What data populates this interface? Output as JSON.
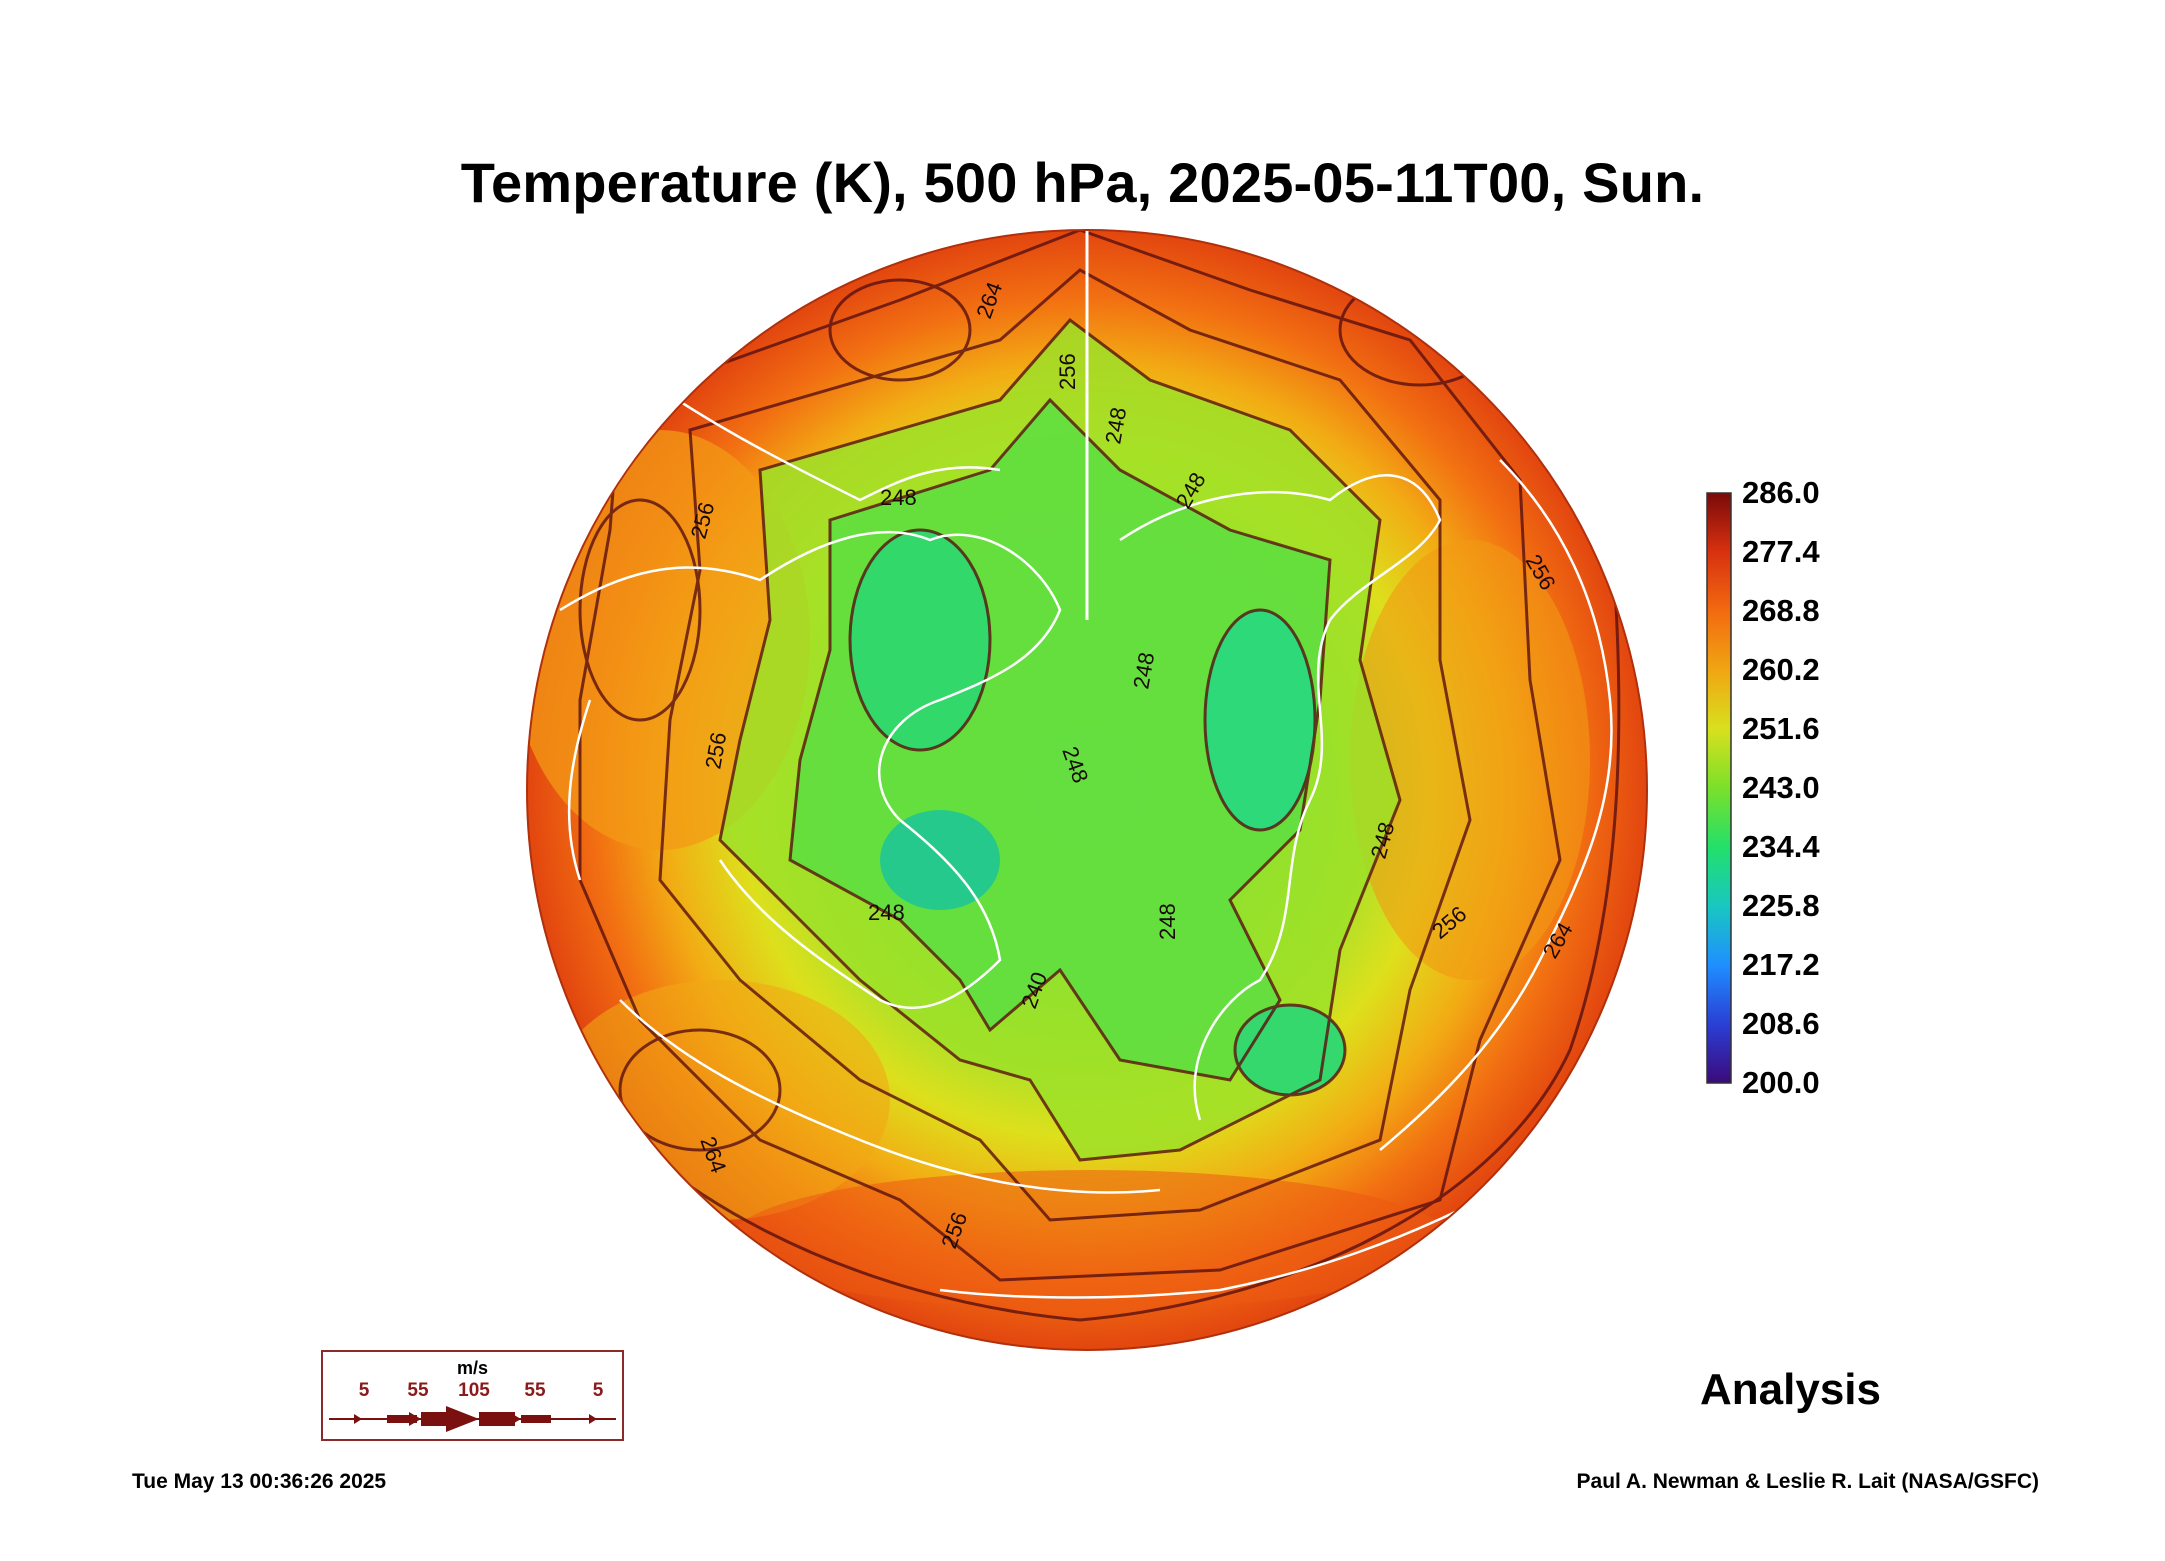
{
  "title": "Temperature (K), 500 hPa, 2025-05-11T00, Sun.",
  "product_label": "Analysis",
  "timestamp": "Tue May 13 00:36:26 2025",
  "credit": "Paul A. Newman & Leslie R. Lait (NASA/GSFC)",
  "colorbar": {
    "min": 200.0,
    "max": 286.0,
    "tick_labels": [
      "286.0",
      "277.4",
      "268.8",
      "260.2",
      "251.6",
      "243.0",
      "234.4",
      "225.8",
      "217.2",
      "208.6",
      "200.0"
    ],
    "colors": [
      "#3b0a7a",
      "#2a3fd6",
      "#1f8fff",
      "#19c7c0",
      "#22e06a",
      "#7be02a",
      "#d8e01e",
      "#f0a512",
      "#f26a10",
      "#d8310f",
      "#7a0a0a"
    ]
  },
  "map": {
    "projection": "polar stereographic, north pole",
    "field": "temperature",
    "cold_core_value_k": 230,
    "contour_labels": [
      "264",
      "256",
      "248",
      "248",
      "248",
      "248",
      "240",
      "248",
      "248",
      "256",
      "264",
      "256",
      "256",
      "264",
      "256",
      "248",
      "248",
      "256"
    ]
  },
  "wind_legend": {
    "unit": "m/s",
    "labels": [
      "5",
      "55",
      "105",
      "55",
      "5"
    ]
  }
}
